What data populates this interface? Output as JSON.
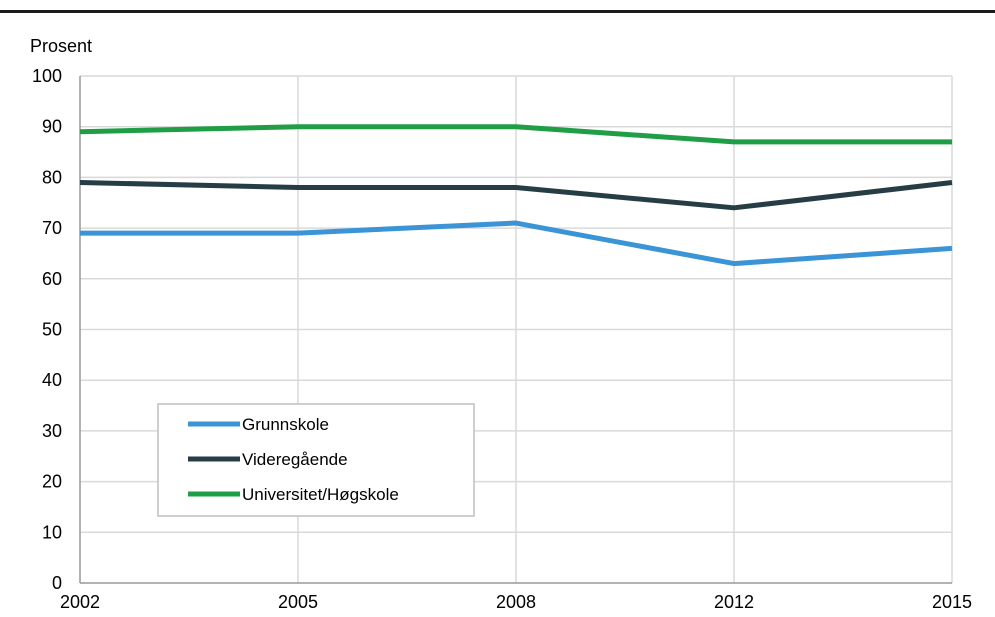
{
  "chart_data": {
    "type": "line",
    "title": "",
    "ylabel": "Prosent",
    "xlabel": "",
    "x": [
      "2002",
      "2005",
      "2008",
      "2012",
      "2015"
    ],
    "ylim": [
      0,
      100
    ],
    "yticks": [
      0,
      10,
      20,
      30,
      40,
      50,
      60,
      70,
      80,
      90,
      100
    ],
    "grid": true,
    "legend_position": "lower-left",
    "series": [
      {
        "name": "Grunnskole",
        "color": "#3a94d6",
        "values": [
          69,
          69,
          71,
          63,
          66
        ]
      },
      {
        "name": "Videregående",
        "color": "#263d45",
        "values": [
          79,
          78,
          78,
          74,
          79
        ]
      },
      {
        "name": "Universitet/Høgskole",
        "color": "#1f9e46",
        "values": [
          89,
          90,
          90,
          87,
          87
        ]
      }
    ]
  }
}
